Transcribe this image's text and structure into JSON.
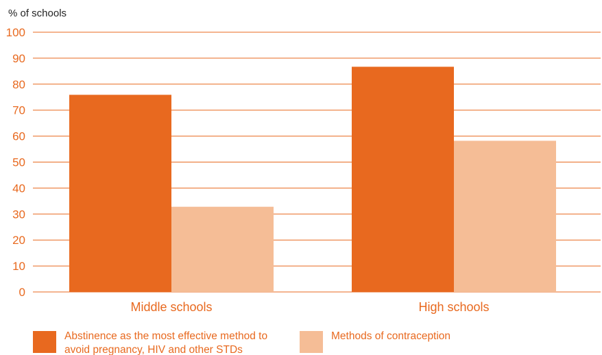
{
  "chart_data": {
    "type": "bar",
    "ylabel": "% of schools",
    "ylim": [
      0,
      100
    ],
    "yticks": [
      0,
      10,
      20,
      30,
      40,
      50,
      60,
      70,
      80,
      90,
      100
    ],
    "grid": true,
    "categories": [
      "Middle schools",
      "High schools"
    ],
    "series": [
      {
        "name": "Abstinence as the most effective method to avoid pregnancy, HIV and other STDs",
        "values": [
          75.9,
          86.7
        ],
        "color": "#e8691f"
      },
      {
        "name": "Methods of contraception",
        "values": [
          32.8,
          58.2
        ],
        "color": "#f5bd96"
      }
    ],
    "legend_position": "bottom"
  }
}
